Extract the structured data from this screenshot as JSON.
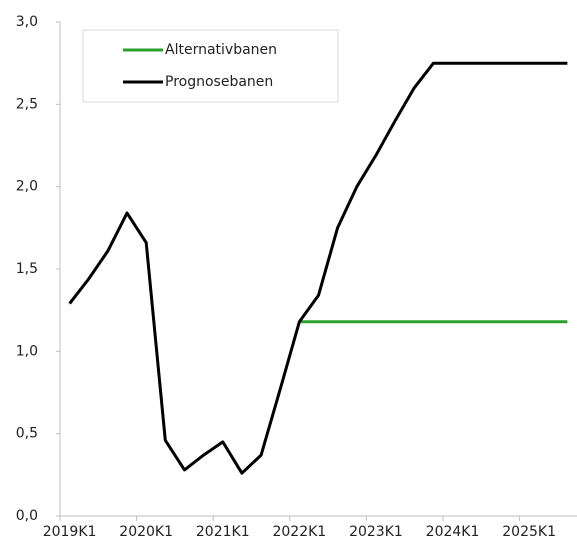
{
  "chart_data": {
    "type": "line",
    "categories": [
      "2019K1",
      null,
      null,
      null,
      "2020K1",
      null,
      null,
      null,
      "2021K1",
      null,
      null,
      null,
      "2022K1",
      null,
      null,
      null,
      "2023K1",
      null,
      null,
      null,
      "2024K1",
      null,
      null,
      null,
      "2025K1",
      null,
      null
    ],
    "series": [
      {
        "name": "Alternativbanen",
        "color": "#2ca02c",
        "values": [
          null,
          null,
          null,
          null,
          null,
          null,
          null,
          null,
          null,
          null,
          null,
          null,
          1.18,
          1.18,
          1.18,
          1.18,
          1.18,
          1.18,
          1.18,
          1.18,
          1.18,
          1.18,
          1.18,
          1.18,
          1.18,
          1.18,
          1.18
        ]
      },
      {
        "name": "Prognosebanen",
        "color": "#000000",
        "values": [
          1.29,
          1.44,
          1.61,
          1.84,
          1.66,
          0.46,
          0.28,
          0.37,
          0.45,
          0.26,
          0.37,
          0.77,
          1.18,
          1.34,
          1.75,
          2.0,
          2.19,
          2.4,
          2.6,
          2.75,
          2.75,
          2.75,
          2.75,
          2.75,
          2.75,
          2.75,
          2.75
        ]
      }
    ],
    "ylim": [
      0,
      3
    ],
    "yticks": [
      {
        "value": 0,
        "label": "0,0"
      },
      {
        "value": 0.5,
        "label": "0,5"
      },
      {
        "value": 1,
        "label": "1,0"
      },
      {
        "value": 1.5,
        "label": "1,5"
      },
      {
        "value": 2,
        "label": "2,0"
      },
      {
        "value": 2.5,
        "label": "2,5"
      },
      {
        "value": 3,
        "label": "3,0"
      }
    ],
    "legend": "upper left"
  }
}
